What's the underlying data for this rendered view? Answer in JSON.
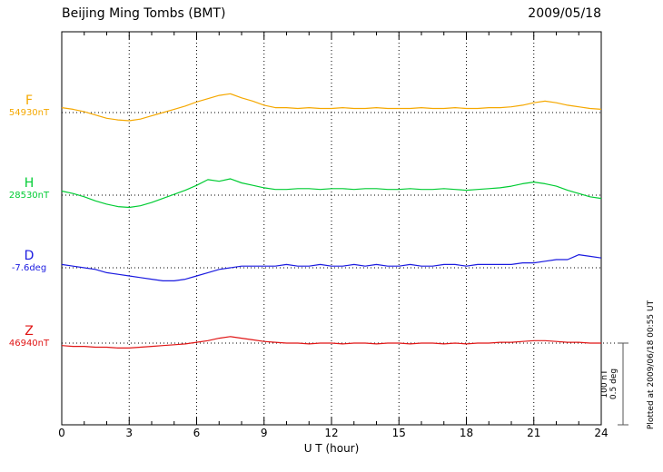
{
  "header": {
    "title": "Beijing Ming Tombs (BMT)",
    "date": "2009/05/18"
  },
  "axis": {
    "label": "U T (hour)",
    "range": [
      0,
      24
    ],
    "major_ticks": [
      0,
      3,
      6,
      9,
      12,
      15,
      18,
      21,
      24
    ],
    "minor_tick_step": 1,
    "grid": "dotted vertical at every 3 hours"
  },
  "scale_bar": {
    "line1": "100 nT",
    "line2": "0.5 deg"
  },
  "note": "Plotted at 2009/06/18 00:55 UT",
  "chart_data": {
    "type": "line",
    "title": "Beijing Ming Tombs (BMT)",
    "subtitle": "2009/05/18",
    "xlabel": "U T (hour)",
    "xlim": [
      0,
      24
    ],
    "x_start": 0,
    "x_step_hours": 0.5,
    "values_are": "offset from baseline, in series units",
    "scale": {
      "bar_nT": 100,
      "bar_deg": 0.5
    },
    "legend_position": "left margin, per-trace colored labels",
    "series": [
      {
        "id": "F",
        "label": "F",
        "baseline_label": "54930nT",
        "baseline_value": 54930,
        "units": "nT",
        "color": "#f5a800",
        "values": [
          6,
          4,
          1,
          -3,
          -7,
          -9,
          -10,
          -8,
          -4,
          0,
          4,
          8,
          13,
          17,
          21,
          23,
          18,
          14,
          9,
          6,
          6,
          5,
          6,
          5,
          5,
          6,
          5,
          5,
          6,
          5,
          5,
          5,
          6,
          5,
          5,
          6,
          5,
          5,
          6,
          6,
          7,
          9,
          12,
          14,
          12,
          9,
          7,
          5,
          4
        ]
      },
      {
        "id": "H",
        "label": "H",
        "baseline_label": "28530nT",
        "baseline_value": 28530,
        "units": "nT",
        "color": "#00cc33",
        "values": [
          5,
          2,
          -2,
          -7,
          -11,
          -14,
          -15,
          -13,
          -9,
          -4,
          1,
          6,
          12,
          19,
          17,
          20,
          15,
          12,
          9,
          7,
          7,
          8,
          8,
          7,
          8,
          8,
          7,
          8,
          8,
          7,
          7,
          8,
          7,
          7,
          8,
          7,
          6,
          7,
          8,
          9,
          11,
          14,
          16,
          14,
          11,
          6,
          2,
          -2,
          -4
        ]
      },
      {
        "id": "D",
        "label": "D",
        "baseline_label": "-7.6deg",
        "baseline_value": -7.6,
        "units": "deg",
        "color": "#1a1ae0",
        "values": [
          0.02,
          0.01,
          0.0,
          -0.01,
          -0.03,
          -0.04,
          -0.05,
          -0.06,
          -0.07,
          -0.08,
          -0.08,
          -0.07,
          -0.05,
          -0.03,
          -0.01,
          0.0,
          0.01,
          0.01,
          0.01,
          0.01,
          0.02,
          0.01,
          0.01,
          0.02,
          0.01,
          0.01,
          0.02,
          0.01,
          0.02,
          0.01,
          0.01,
          0.02,
          0.01,
          0.01,
          0.02,
          0.02,
          0.01,
          0.02,
          0.02,
          0.02,
          0.02,
          0.03,
          0.03,
          0.04,
          0.05,
          0.05,
          0.08,
          0.07,
          0.06
        ]
      },
      {
        "id": "Z",
        "label": "Z",
        "baseline_label": "46940nT",
        "baseline_value": 46940,
        "units": "nT",
        "color": "#e01515",
        "values": [
          -3,
          -4,
          -4,
          -5,
          -5,
          -6,
          -6,
          -5,
          -4,
          -3,
          -2,
          -1,
          1,
          3,
          6,
          8,
          6,
          4,
          2,
          1,
          0,
          0,
          -1,
          0,
          0,
          -1,
          0,
          0,
          -1,
          0,
          0,
          -1,
          0,
          0,
          -1,
          0,
          -1,
          0,
          0,
          1,
          1,
          2,
          3,
          3,
          2,
          1,
          1,
          0,
          0
        ]
      }
    ]
  }
}
